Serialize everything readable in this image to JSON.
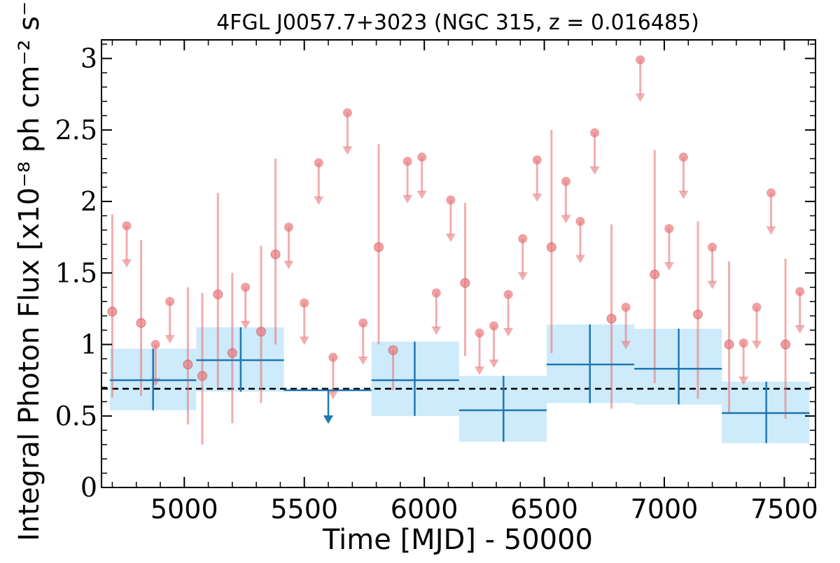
{
  "chart_data": {
    "type": "scatter",
    "title": "4FGL J0057.7+3023 (NGC 315, z = 0.016485)",
    "xlabel": "Time [MJD] - 50000",
    "ylabel": "Integral Photon Flux [x10⁻⁸ ph cm⁻² s⁻¹]",
    "xlim": [
      4655,
      7630
    ],
    "ylim": [
      0,
      3.13
    ],
    "xticks": [
      5000,
      5500,
      6000,
      6500,
      7000,
      7500
    ],
    "xtick_labels": [
      "5000",
      "5500",
      "6000",
      "6500",
      "7000",
      "7500"
    ],
    "yticks": [
      0,
      0.5,
      1,
      1.5,
      2,
      2.5,
      3
    ],
    "ytick_labels": [
      "0",
      "0.5",
      "1",
      "1.5",
      "2",
      "2.5",
      "3"
    ],
    "reference_line": {
      "value": 0.69,
      "style": "dashed",
      "color": "#000000"
    },
    "colors": {
      "short_bins": "#e8787a",
      "long_bins_line": "#1f77b4",
      "long_bins_band": "#cdebfa"
    },
    "series": [
      {
        "bin": "short",
        "detections": [
          {
            "x": 4700,
            "y": 1.23,
            "ylow": 0.63,
            "yhigh": 1.91
          },
          {
            "x": 4820,
            "y": 1.15,
            "ylow": 0.64,
            "yhigh": 1.73
          },
          {
            "x": 5015,
            "y": 0.86,
            "ylow": 0.44,
            "yhigh": 1.4
          },
          {
            "x": 5075,
            "y": 0.78,
            "ylow": 0.3,
            "yhigh": 1.36
          },
          {
            "x": 5140,
            "y": 1.35,
            "ylow": 0.7,
            "yhigh": 2.06
          },
          {
            "x": 5200,
            "y": 0.94,
            "ylow": 0.45,
            "yhigh": 1.5
          },
          {
            "x": 5320,
            "y": 1.09,
            "ylow": 0.59,
            "yhigh": 1.69
          },
          {
            "x": 5380,
            "y": 1.63,
            "ylow": 1.0,
            "yhigh": 2.3
          },
          {
            "x": 5810,
            "y": 1.68,
            "ylow": 1.0,
            "yhigh": 2.4
          },
          {
            "x": 5870,
            "y": 0.96,
            "ylow": 0.68,
            "yhigh": 0.96
          },
          {
            "x": 6170,
            "y": 1.43,
            "ylow": 0.92,
            "yhigh": 1.99
          },
          {
            "x": 6530,
            "y": 1.68,
            "ylow": 0.94,
            "yhigh": 2.5
          },
          {
            "x": 6780,
            "y": 1.18,
            "ylow": 0.55,
            "yhigh": 1.84
          },
          {
            "x": 6960,
            "y": 1.49,
            "ylow": 0.73,
            "yhigh": 2.36
          },
          {
            "x": 7140,
            "y": 1.21,
            "ylow": 0.62,
            "yhigh": 1.86
          },
          {
            "x": 7270,
            "y": 1.0,
            "ylow": 0.52,
            "yhigh": 1.58
          },
          {
            "x": 7505,
            "y": 1.0,
            "ylow": 0.48,
            "yhigh": 1.6
          }
        ],
        "upper_limits": [
          {
            "x": 4760,
            "y": 1.83
          },
          {
            "x": 4880,
            "y": 1.0
          },
          {
            "x": 4940,
            "y": 1.3
          },
          {
            "x": 5255,
            "y": 1.4
          },
          {
            "x": 5435,
            "y": 1.82
          },
          {
            "x": 5500,
            "y": 1.29
          },
          {
            "x": 5560,
            "y": 2.27
          },
          {
            "x": 5620,
            "y": 0.91
          },
          {
            "x": 5680,
            "y": 2.62
          },
          {
            "x": 5745,
            "y": 1.15
          },
          {
            "x": 5930,
            "y": 2.28
          },
          {
            "x": 5990,
            "y": 2.31
          },
          {
            "x": 6050,
            "y": 1.36
          },
          {
            "x": 6110,
            "y": 2.01
          },
          {
            "x": 6230,
            "y": 1.08
          },
          {
            "x": 6290,
            "y": 1.13
          },
          {
            "x": 6350,
            "y": 1.35
          },
          {
            "x": 6410,
            "y": 1.74
          },
          {
            "x": 6470,
            "y": 2.29
          },
          {
            "x": 6590,
            "y": 2.14
          },
          {
            "x": 6650,
            "y": 1.86
          },
          {
            "x": 6710,
            "y": 2.48
          },
          {
            "x": 6840,
            "y": 1.26
          },
          {
            "x": 6900,
            "y": 2.99
          },
          {
            "x": 7020,
            "y": 1.81
          },
          {
            "x": 7080,
            "y": 2.31
          },
          {
            "x": 7200,
            "y": 1.68
          },
          {
            "x": 7330,
            "y": 1.01
          },
          {
            "x": 7385,
            "y": 1.26
          },
          {
            "x": 7445,
            "y": 2.06
          },
          {
            "x": 7565,
            "y": 1.37
          }
        ]
      },
      {
        "bin": "long",
        "detections": [
          {
            "x": 4870,
            "xlow": 4690,
            "xhigh": 5050,
            "y": 0.75,
            "ylow": 0.54,
            "yhigh": 0.97
          },
          {
            "x": 5235,
            "xlow": 5050,
            "xhigh": 5415,
            "y": 0.89,
            "ylow": 0.67,
            "yhigh": 1.12
          },
          {
            "x": 5960,
            "xlow": 5780,
            "xhigh": 6145,
            "y": 0.75,
            "ylow": 0.5,
            "yhigh": 1.02
          },
          {
            "x": 6330,
            "xlow": 6145,
            "xhigh": 6510,
            "y": 0.54,
            "ylow": 0.32,
            "yhigh": 0.78
          },
          {
            "x": 6690,
            "xlow": 6510,
            "xhigh": 6875,
            "y": 0.86,
            "ylow": 0.59,
            "yhigh": 1.14
          },
          {
            "x": 7060,
            "xlow": 6875,
            "xhigh": 7240,
            "y": 0.83,
            "ylow": 0.58,
            "yhigh": 1.11
          },
          {
            "x": 7425,
            "xlow": 7240,
            "xhigh": 7605,
            "y": 0.52,
            "ylow": 0.31,
            "yhigh": 0.74
          }
        ],
        "upper_limits": [
          {
            "x": 5600,
            "xlow": 5415,
            "xhigh": 5780,
            "y": 0.68
          }
        ]
      }
    ]
  }
}
